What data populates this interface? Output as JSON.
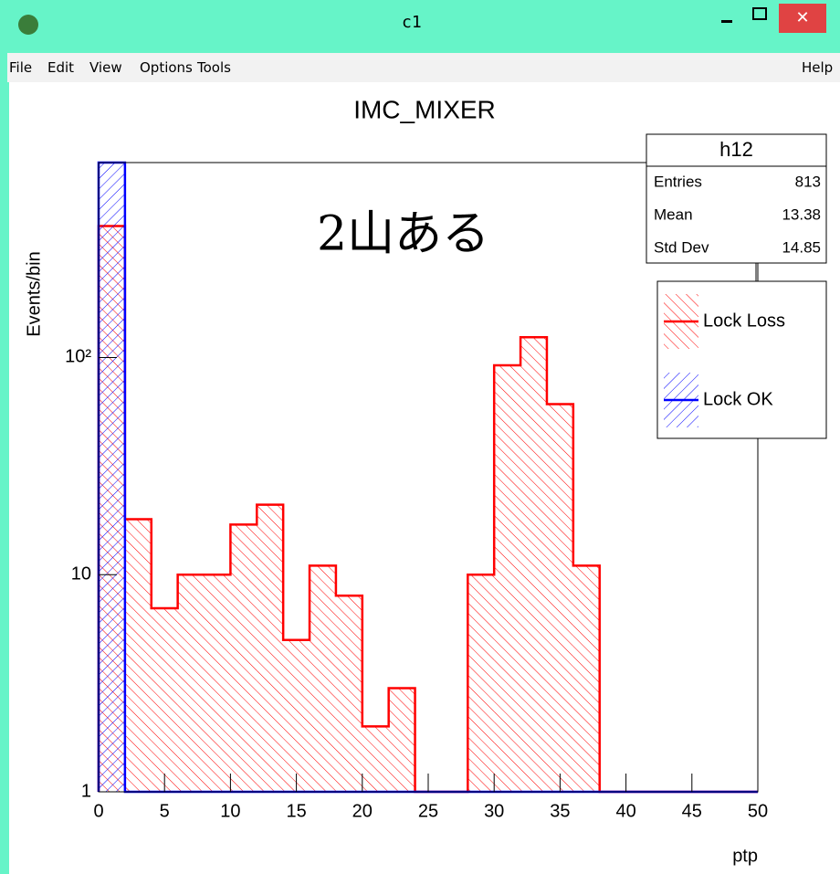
{
  "window": {
    "title": "c1",
    "menu": [
      "File",
      "Edit",
      "View",
      "Options",
      "Tools"
    ],
    "help": "Help"
  },
  "chart_data": {
    "type": "histogram",
    "title": "IMC_MIXER",
    "x_label": "ptp",
    "y_label": "Events/bin",
    "annotation": "2山ある",
    "log_y": true,
    "bins": [
      0,
      2,
      4,
      6,
      8,
      10,
      12,
      14,
      16,
      18,
      20,
      22,
      24,
      26,
      28,
      30,
      32,
      34,
      36,
      38,
      40,
      42,
      44,
      46,
      48,
      50
    ],
    "series": [
      {
        "name": "Lock Loss",
        "color": "#ff0000",
        "values": [
          403,
          18,
          7,
          10,
          10,
          17,
          21,
          5,
          11,
          8,
          2,
          3,
          0,
          0,
          10,
          92,
          124,
          61,
          11,
          0,
          0,
          0,
          0,
          0,
          0
        ]
      },
      {
        "name": "Lock OK",
        "color": "#0000ff",
        "values": [
          790,
          0,
          0,
          0,
          0,
          0,
          0,
          0,
          0,
          0,
          0,
          0,
          0,
          0,
          0,
          0,
          0,
          0,
          0,
          0,
          0,
          0,
          0,
          0,
          0
        ]
      }
    ],
    "xlim": [
      0,
      50
    ],
    "xticks": [
      0,
      5,
      10,
      15,
      20,
      25,
      30,
      35,
      40,
      45,
      50
    ],
    "ylim": [
      1,
      790
    ],
    "yticks": [
      1,
      10,
      {
        "value": 100,
        "label": "10²"
      }
    ],
    "stats": {
      "name": "h12",
      "rows": [
        [
          "Entries",
          "813"
        ],
        [
          "Mean",
          "13.38"
        ],
        [
          "Std Dev",
          "14.85"
        ]
      ]
    }
  }
}
